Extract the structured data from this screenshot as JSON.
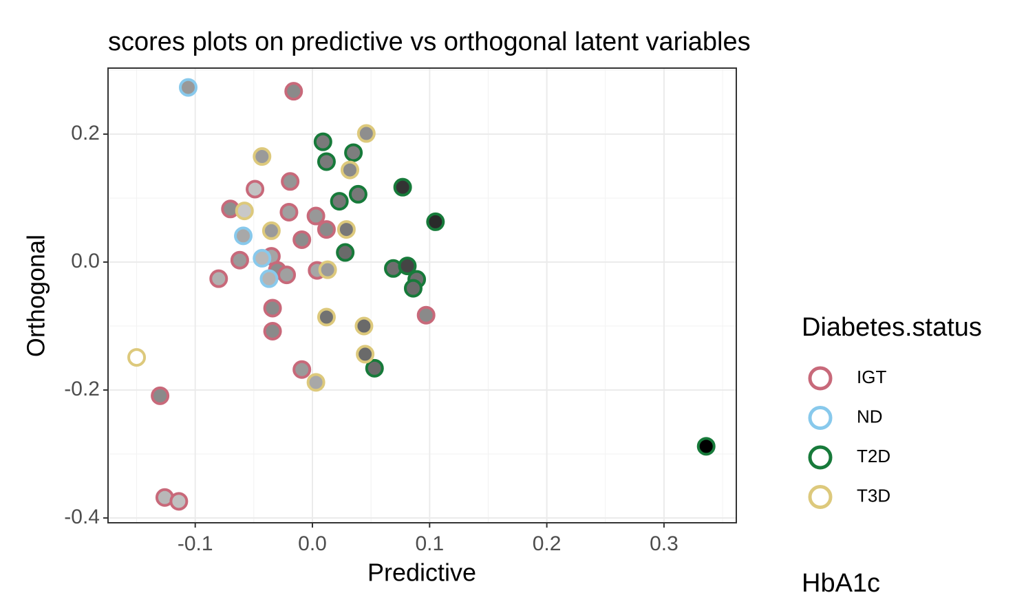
{
  "chart_data": {
    "type": "scatter",
    "title": "scores plots on predictive vs orthogonal latent variables",
    "x_label": "Predictive",
    "y_label": "Orthogonal",
    "legend_title": "Diabetes.status",
    "legend_fill_title": "HbA1c",
    "xlim": [
      -0.1744,
      0.3617
    ],
    "ylim": [
      -0.4075,
      0.3032
    ],
    "xticks": [
      -0.1,
      {
        "value": 0,
        "label": "0.0"
      },
      0.1,
      0.2,
      0.3
    ],
    "yticks": [
      -0.4,
      -0.2,
      {
        "value": 0,
        "label": "0.0"
      },
      0.2
    ],
    "grid": true,
    "series": [
      {
        "name": "IGT",
        "color": "#c8697a",
        "x": [
          -0.016,
          -0.13,
          -0.126,
          -0.114,
          -0.08,
          -0.062,
          -0.07,
          -0.049,
          -0.019,
          -0.02,
          -0.035,
          -0.03,
          -0.022,
          -0.034,
          -0.034,
          -0.009,
          0.003,
          0.012,
          0.004,
          -0.009,
          0.097
        ],
        "values": [
          0.267,
          -0.209,
          -0.368,
          -0.374,
          -0.026,
          0.003,
          0.083,
          0.114,
          0.126,
          0.078,
          0.009,
          -0.013,
          -0.02,
          -0.072,
          -0.108,
          0.035,
          0.072,
          0.051,
          -0.013,
          -0.168,
          -0.083
        ],
        "fills": [
          "#8a8a8a",
          "#8a8a8a",
          "#b8b8b8",
          "#c0c0c0",
          "#b0b0b0",
          "#9a9a9a",
          "#8e8e8e",
          "#c2c2c2",
          "#959595",
          "#a0a0a0",
          "#a4a4a4",
          "#8c8c8c",
          "#a0a0a0",
          "#8a8a8a",
          "#8a8a8a",
          "#8c8c8c",
          "#989898",
          "#8a8a8a",
          "#a6a6a6",
          "#9a9a9a",
          "#8a8a8a"
        ]
      },
      {
        "name": "ND",
        "color": "#88c9ec",
        "x": [
          -0.106,
          -0.059,
          -0.043,
          -0.037
        ],
        "values": [
          0.273,
          0.041,
          0.006,
          -0.026
        ],
        "fills": [
          "#999999",
          "#a8a8a8",
          "#b8b8b8",
          "#b4b4b4"
        ]
      },
      {
        "name": "T2D",
        "color": "#177a3a",
        "x": [
          0.009,
          0.012,
          0.035,
          0.039,
          0.023,
          0.028,
          0.077,
          0.105,
          0.069,
          0.081,
          0.089,
          0.086,
          0.053,
          0.336
        ],
        "values": [
          0.188,
          0.157,
          0.171,
          0.106,
          0.095,
          0.015,
          0.117,
          0.063,
          -0.01,
          -0.006,
          -0.027,
          -0.041,
          -0.166,
          -0.288
        ],
        "fills": [
          "#7a7a7a",
          "#7a7a7a",
          "#7e7e7e",
          "#787878",
          "#777777",
          "#6a6a6a",
          "#333333",
          "#2a2a2a",
          "#6e6e6e",
          "#444444",
          "#6e6e6e",
          "#6a6a6a",
          "#6a6a6a",
          "#000000"
        ]
      },
      {
        "name": "T3D",
        "color": "#ddc97c",
        "x": [
          -0.15,
          -0.043,
          -0.058,
          -0.035,
          0.046,
          0.032,
          0.029,
          0.013,
          0.012,
          0.044,
          0.045,
          0.003
        ],
        "values": [
          -0.149,
          0.165,
          0.08,
          0.049,
          0.201,
          0.144,
          0.051,
          -0.012,
          -0.086,
          -0.1,
          -0.144,
          -0.188
        ],
        "fills": [
          "#ffffff",
          "#9a9a9a",
          "#c8c8c8",
          "#9a9a9a",
          "#8e8e8e",
          "#8a8a8a",
          "#787878",
          "#9a9a9a",
          "#727272",
          "#6a6a6a",
          "#6a6a6a",
          "#a8a8a8"
        ]
      }
    ]
  }
}
